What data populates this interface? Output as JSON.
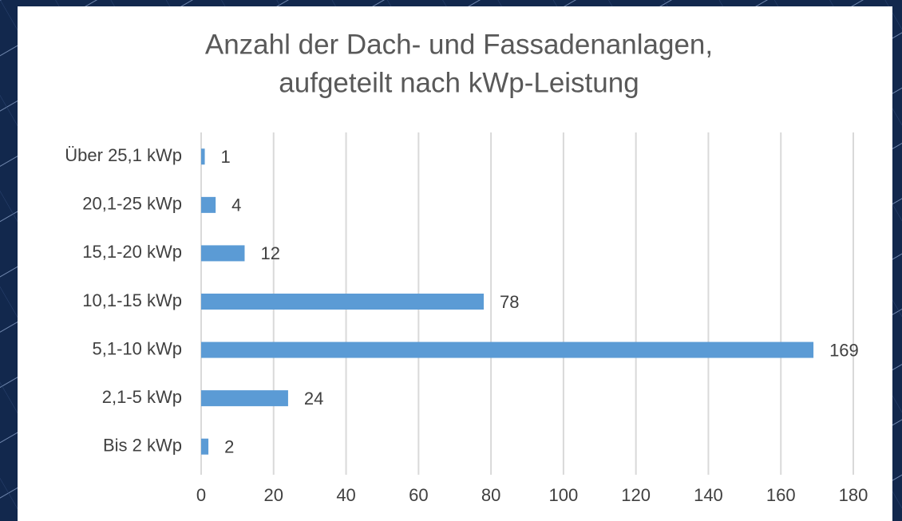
{
  "chart_data": {
    "type": "bar",
    "orientation": "horizontal",
    "title": [
      "Anzahl der Dach- und Fassadenanlagen,",
      "aufgeteilt nach kWp-Leistung"
    ],
    "categories": [
      "Über 25,1 kWp",
      "20,1-25 kWp",
      "15,1-20 kWp",
      "10,1-15 kWp",
      "5,1-10 kWp",
      "2,1-5 kWp",
      "Bis 2 kWp"
    ],
    "values": [
      1,
      4,
      12,
      78,
      169,
      24,
      2
    ],
    "color": "#5b9bd5",
    "xlim": [
      0,
      180
    ],
    "xticks": [
      0,
      20,
      40,
      60,
      80,
      100,
      120,
      140,
      160,
      180
    ],
    "grid": true
  }
}
